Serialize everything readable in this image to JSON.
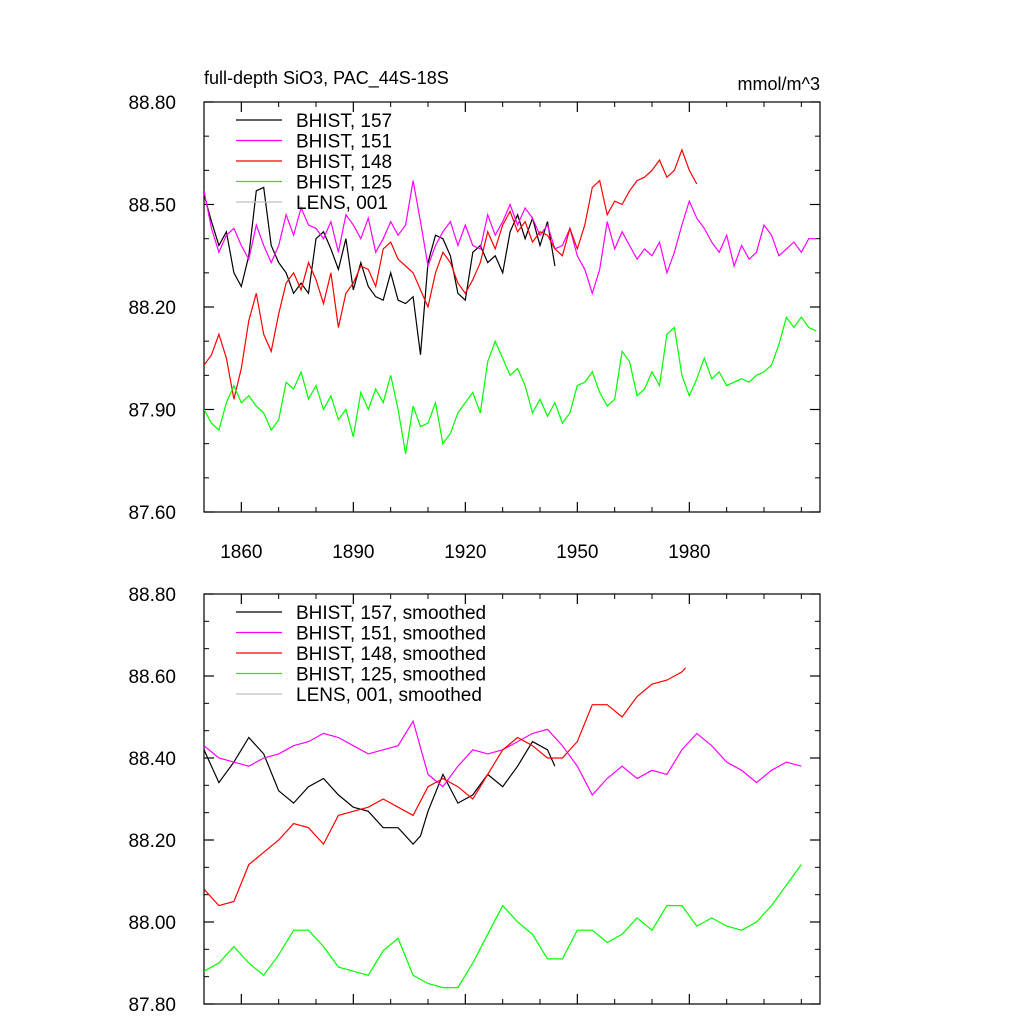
{
  "chart_data": [
    {
      "type": "line",
      "title": "full-depth SiO3, PAC_44S-18S",
      "units": "mmol/m^3",
      "xlim": [
        1850,
        2015
      ],
      "ylim": [
        87.6,
        88.8
      ],
      "xticks": [
        1860,
        1890,
        1920,
        1950,
        1980
      ],
      "yticks": [
        87.6,
        87.9,
        88.2,
        88.5,
        88.8
      ],
      "ytick_labels": [
        "87.60",
        "87.90",
        "88.20",
        "88.50",
        "88.80"
      ],
      "legend_position": "top-left",
      "series": [
        {
          "name": "BHIST, 157",
          "color": "#000000",
          "x": [
            1850,
            1852,
            1854,
            1856,
            1858,
            1860,
            1862,
            1864,
            1866,
            1868,
            1870,
            1872,
            1874,
            1876,
            1878,
            1880,
            1882,
            1884,
            1886,
            1888,
            1890,
            1892,
            1894,
            1896,
            1898,
            1900,
            1902,
            1904,
            1906,
            1908,
            1910,
            1912,
            1914,
            1916,
            1918,
            1920,
            1922,
            1924,
            1926,
            1928,
            1930,
            1932,
            1934,
            1936,
            1938,
            1940,
            1942,
            1944
          ],
          "y": [
            88.53,
            88.45,
            88.38,
            88.42,
            88.3,
            88.26,
            88.35,
            88.54,
            88.55,
            88.38,
            88.33,
            88.3,
            88.24,
            88.27,
            88.24,
            88.4,
            88.42,
            88.37,
            88.31,
            88.4,
            88.25,
            88.33,
            88.26,
            88.23,
            88.22,
            88.3,
            88.22,
            88.21,
            88.23,
            88.06,
            88.33,
            88.41,
            88.4,
            88.35,
            88.24,
            88.22,
            88.36,
            88.38,
            88.33,
            88.35,
            88.3,
            88.42,
            88.47,
            88.4,
            88.46,
            88.38,
            88.45,
            88.32
          ]
        },
        {
          "name": "BHIST, 151",
          "color": "#ff00ff",
          "x": [
            1850,
            1852,
            1854,
            1856,
            1858,
            1860,
            1862,
            1864,
            1866,
            1868,
            1870,
            1872,
            1874,
            1876,
            1878,
            1880,
            1882,
            1884,
            1886,
            1888,
            1890,
            1892,
            1894,
            1896,
            1898,
            1900,
            1902,
            1904,
            1906,
            1908,
            1910,
            1912,
            1914,
            1916,
            1918,
            1920,
            1922,
            1924,
            1926,
            1928,
            1930,
            1932,
            1934,
            1936,
            1938,
            1940,
            1942,
            1944,
            1946,
            1948,
            1950,
            1952,
            1954,
            1956,
            1958,
            1960,
            1962,
            1964,
            1966,
            1968,
            1970,
            1972,
            1974,
            1976,
            1978,
            1980,
            1982,
            1984,
            1986,
            1988,
            1990,
            1992,
            1994,
            1996,
            1998,
            2000,
            2002,
            2004,
            2006,
            2008,
            2010,
            2012,
            2014
          ],
          "y": [
            88.54,
            88.43,
            88.36,
            88.41,
            88.43,
            88.38,
            88.34,
            88.44,
            88.38,
            88.33,
            88.38,
            88.47,
            88.41,
            88.49,
            88.44,
            88.43,
            88.4,
            88.45,
            88.36,
            88.47,
            88.44,
            88.4,
            88.46,
            88.36,
            88.4,
            88.45,
            88.41,
            88.44,
            88.57,
            88.45,
            88.32,
            88.38,
            88.42,
            88.45,
            88.38,
            88.44,
            88.38,
            88.37,
            88.47,
            88.41,
            88.45,
            88.5,
            88.44,
            88.49,
            88.46,
            88.41,
            88.44,
            88.37,
            88.38,
            88.43,
            88.35,
            88.31,
            88.24,
            88.31,
            88.45,
            88.37,
            88.42,
            88.38,
            88.34,
            88.37,
            88.35,
            88.39,
            88.3,
            88.36,
            88.44,
            88.51,
            88.46,
            88.43,
            88.39,
            88.36,
            88.41,
            88.32,
            88.38,
            88.34,
            88.36,
            88.44,
            88.41,
            88.35,
            88.37,
            88.39,
            88.36,
            88.4,
            88.4
          ]
        },
        {
          "name": "BHIST, 148",
          "color": "#ff0000",
          "x": [
            1850,
            1852,
            1854,
            1856,
            1858,
            1860,
            1862,
            1864,
            1866,
            1868,
            1870,
            1872,
            1874,
            1876,
            1878,
            1880,
            1882,
            1884,
            1886,
            1888,
            1890,
            1892,
            1894,
            1896,
            1898,
            1900,
            1902,
            1904,
            1906,
            1908,
            1910,
            1912,
            1914,
            1916,
            1918,
            1920,
            1922,
            1924,
            1926,
            1928,
            1930,
            1932,
            1934,
            1936,
            1938,
            1940,
            1942,
            1944,
            1946,
            1948,
            1950,
            1952,
            1954,
            1956,
            1958,
            1960,
            1962,
            1964,
            1966,
            1968,
            1970,
            1972,
            1974,
            1976,
            1978,
            1980,
            1982
          ],
          "y": [
            88.03,
            88.06,
            88.12,
            88.05,
            87.93,
            88.02,
            88.16,
            88.24,
            88.12,
            88.07,
            88.18,
            88.27,
            88.3,
            88.25,
            88.33,
            88.28,
            88.21,
            88.3,
            88.14,
            88.24,
            88.27,
            88.32,
            88.31,
            88.26,
            88.37,
            88.39,
            88.34,
            88.32,
            88.3,
            88.25,
            88.2,
            88.3,
            88.36,
            88.33,
            88.27,
            88.24,
            88.28,
            88.33,
            88.42,
            88.37,
            88.44,
            88.48,
            88.42,
            88.45,
            88.39,
            88.42,
            88.41,
            88.37,
            88.35,
            88.43,
            88.37,
            88.44,
            88.55,
            88.57,
            88.47,
            88.51,
            88.5,
            88.54,
            88.57,
            88.58,
            88.6,
            88.63,
            88.58,
            88.6,
            88.66,
            88.6,
            88.56
          ]
        },
        {
          "name": "BHIST, 125",
          "color": "#00ff00",
          "x": [
            1850,
            1852,
            1854,
            1856,
            1858,
            1860,
            1862,
            1864,
            1866,
            1868,
            1870,
            1872,
            1874,
            1876,
            1878,
            1880,
            1882,
            1884,
            1886,
            1888,
            1890,
            1892,
            1894,
            1896,
            1898,
            1900,
            1902,
            1904,
            1906,
            1908,
            1910,
            1912,
            1914,
            1916,
            1918,
            1920,
            1922,
            1924,
            1926,
            1928,
            1930,
            1932,
            1934,
            1936,
            1938,
            1940,
            1942,
            1944,
            1946,
            1948,
            1950,
            1952,
            1954,
            1956,
            1958,
            1960,
            1962,
            1964,
            1966,
            1968,
            1970,
            1972,
            1974,
            1976,
            1978,
            1980,
            1982,
            1984,
            1986,
            1988,
            1990,
            1992,
            1994,
            1996,
            1998,
            2000,
            2002,
            2004,
            2006,
            2008,
            2010,
            2012,
            2014
          ],
          "y": [
            87.9,
            87.86,
            87.84,
            87.92,
            87.97,
            87.92,
            87.94,
            87.91,
            87.89,
            87.84,
            87.87,
            87.98,
            87.96,
            88.01,
            87.93,
            87.97,
            87.9,
            87.94,
            87.87,
            87.9,
            87.82,
            87.95,
            87.9,
            87.96,
            87.92,
            88.0,
            87.9,
            87.77,
            87.91,
            87.85,
            87.86,
            87.92,
            87.8,
            87.83,
            87.89,
            87.92,
            87.95,
            87.89,
            88.04,
            88.1,
            88.05,
            88.0,
            88.02,
            87.97,
            87.89,
            87.93,
            87.88,
            87.92,
            87.86,
            87.89,
            87.97,
            87.98,
            88.01,
            87.95,
            87.91,
            87.93,
            88.07,
            88.04,
            87.94,
            87.96,
            88.01,
            87.97,
            88.12,
            88.14,
            88.0,
            87.94,
            87.99,
            88.05,
            87.99,
            88.01,
            87.97,
            87.98,
            87.99,
            87.98,
            88.0,
            88.01,
            88.03,
            88.09,
            88.17,
            88.14,
            88.17,
            88.14,
            88.13
          ]
        },
        {
          "name": "LENS, 001",
          "color": "#c0c0c0",
          "x": [],
          "y": []
        }
      ]
    },
    {
      "type": "line",
      "xlim": [
        1850,
        2015
      ],
      "ylim": [
        87.8,
        88.8
      ],
      "xticks": [
        1860,
        1890,
        1920,
        1950,
        1980
      ],
      "yticks": [
        87.8,
        88.0,
        88.2,
        88.4,
        88.6,
        88.8
      ],
      "ytick_labels": [
        "87.80",
        "88.00",
        "88.20",
        "88.40",
        "88.60",
        "88.80"
      ],
      "legend_position": "top-left",
      "series": [
        {
          "name": "BHIST, 157, smoothed",
          "color": "#000000",
          "x": [
            1850,
            1854,
            1858,
            1862,
            1866,
            1870,
            1874,
            1878,
            1882,
            1886,
            1890,
            1894,
            1898,
            1902,
            1906,
            1908,
            1910,
            1914,
            1918,
            1922,
            1926,
            1930,
            1934,
            1938,
            1942,
            1944
          ],
          "y": [
            88.42,
            88.34,
            88.39,
            88.45,
            88.41,
            88.32,
            88.29,
            88.33,
            88.35,
            88.31,
            88.28,
            88.27,
            88.23,
            88.23,
            88.19,
            88.21,
            88.27,
            88.36,
            88.29,
            88.31,
            88.36,
            88.33,
            88.38,
            88.44,
            88.42,
            88.38
          ]
        },
        {
          "name": "BHIST, 151, smoothed",
          "color": "#ff00ff",
          "x": [
            1850,
            1854,
            1858,
            1862,
            1866,
            1870,
            1874,
            1878,
            1882,
            1886,
            1890,
            1894,
            1898,
            1902,
            1906,
            1910,
            1914,
            1918,
            1922,
            1926,
            1930,
            1934,
            1938,
            1942,
            1946,
            1950,
            1954,
            1958,
            1962,
            1966,
            1970,
            1974,
            1978,
            1982,
            1986,
            1990,
            1994,
            1998,
            2002,
            2006,
            2010
          ],
          "y": [
            88.43,
            88.4,
            88.39,
            88.38,
            88.4,
            88.41,
            88.43,
            88.44,
            88.46,
            88.45,
            88.43,
            88.41,
            88.42,
            88.43,
            88.49,
            88.36,
            88.33,
            88.38,
            88.42,
            88.41,
            88.42,
            88.44,
            88.46,
            88.47,
            88.43,
            88.38,
            88.31,
            88.35,
            88.38,
            88.35,
            88.37,
            88.36,
            88.42,
            88.46,
            88.43,
            88.39,
            88.37,
            88.34,
            88.37,
            88.39,
            88.38
          ]
        },
        {
          "name": "BHIST, 148, smoothed",
          "color": "#ff0000",
          "x": [
            1850,
            1854,
            1858,
            1862,
            1866,
            1870,
            1874,
            1878,
            1882,
            1886,
            1890,
            1894,
            1898,
            1902,
            1906,
            1910,
            1914,
            1918,
            1922,
            1926,
            1930,
            1934,
            1938,
            1942,
            1946,
            1950,
            1954,
            1958,
            1962,
            1966,
            1970,
            1974,
            1978,
            1979
          ],
          "y": [
            88.08,
            88.04,
            88.05,
            88.14,
            88.17,
            88.2,
            88.24,
            88.23,
            88.19,
            88.26,
            88.27,
            88.28,
            88.3,
            88.28,
            88.26,
            88.33,
            88.35,
            88.33,
            88.3,
            88.36,
            88.42,
            88.45,
            88.43,
            88.4,
            88.4,
            88.44,
            88.53,
            88.53,
            88.5,
            88.55,
            88.58,
            88.59,
            88.61,
            88.62
          ]
        },
        {
          "name": "BHIST, 125, smoothed",
          "color": "#00ff00",
          "x": [
            1850,
            1854,
            1858,
            1862,
            1866,
            1870,
            1874,
            1878,
            1882,
            1886,
            1890,
            1894,
            1898,
            1902,
            1906,
            1910,
            1914,
            1918,
            1922,
            1926,
            1930,
            1934,
            1938,
            1942,
            1946,
            1950,
            1954,
            1958,
            1962,
            1966,
            1970,
            1974,
            1978,
            1982,
            1986,
            1990,
            1994,
            1998,
            2002,
            2006,
            2010
          ],
          "y": [
            87.88,
            87.9,
            87.94,
            87.9,
            87.87,
            87.92,
            87.98,
            87.98,
            87.94,
            87.89,
            87.88,
            87.87,
            87.93,
            87.96,
            87.87,
            87.85,
            87.84,
            87.84,
            87.9,
            87.97,
            88.04,
            88.0,
            87.97,
            87.91,
            87.91,
            87.98,
            87.98,
            87.95,
            87.97,
            88.01,
            87.98,
            88.04,
            88.04,
            87.99,
            88.01,
            87.99,
            87.98,
            88.0,
            88.04,
            88.09,
            88.14
          ]
        },
        {
          "name": "LENS, 001, smoothed",
          "color": "#c0c0c0",
          "x": [],
          "y": []
        }
      ]
    }
  ]
}
